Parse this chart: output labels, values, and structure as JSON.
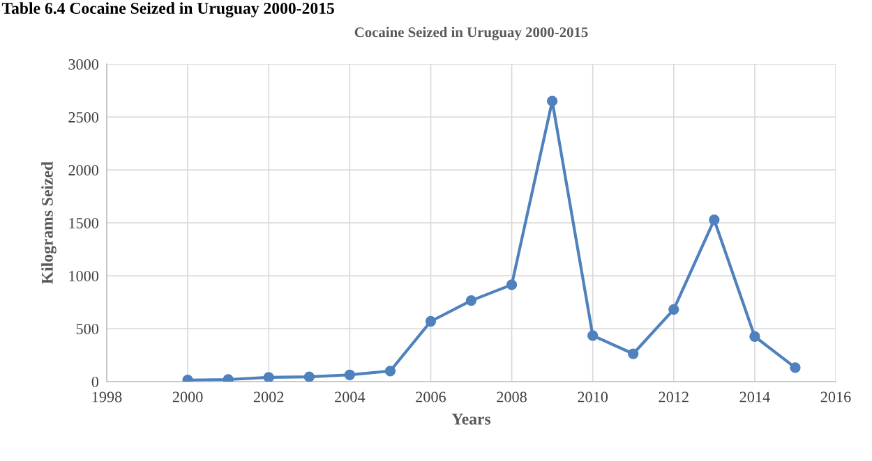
{
  "chart_data": {
    "type": "line",
    "title": "Cocaine Seized in Uruguay 2000-2015",
    "xlabel": "Years",
    "ylabel": "Kilograms Seized",
    "annotations": [
      "Table 6.4 Cocaine Seized in Uruguay 2000-2015"
    ],
    "x": [
      2000,
      2001,
      2002,
      2003,
      2004,
      2005,
      2006,
      2007,
      2008,
      2009,
      2010,
      2011,
      2012,
      2013,
      2014,
      2015
    ],
    "series": [
      {
        "color": "#4f81bd",
        "values": [
          15,
          20,
          40,
          45,
          64,
          100,
          569,
          766,
          915,
          2650,
          435,
          263,
          682,
          1528,
          426,
          132
        ]
      }
    ],
    "xlim": [
      1998,
      2016
    ],
    "xticks": [
      1998,
      2000,
      2002,
      2004,
      2006,
      2008,
      2010,
      2012,
      2014,
      2016
    ],
    "ylim": [
      0,
      3000
    ],
    "yticks": [
      0,
      500,
      1000,
      1500,
      2000,
      2500,
      3000
    ],
    "grid": true,
    "marker": "circle",
    "line_style": "solid",
    "legend": false
  }
}
